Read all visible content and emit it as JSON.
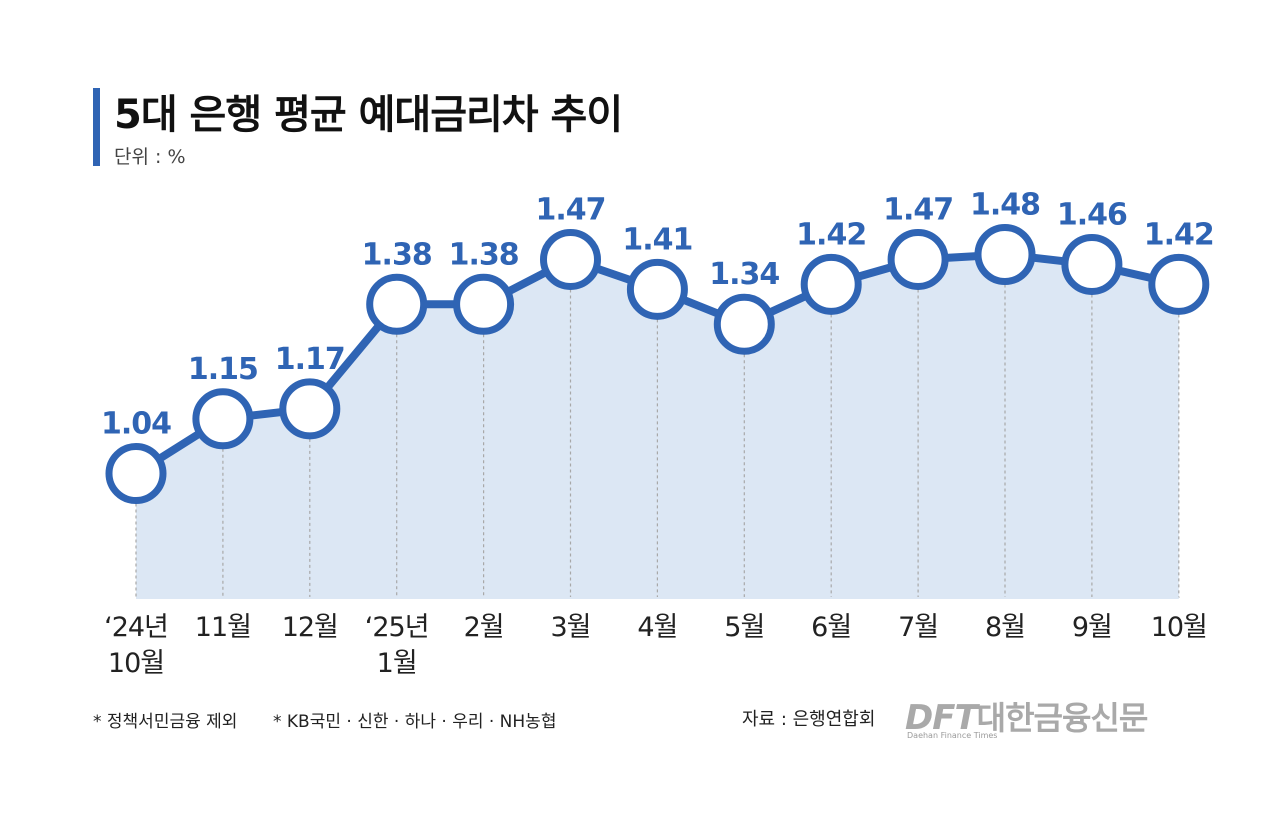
{
  "header": {
    "title": "5대 은행 평균 예대금리차 추이",
    "unit": "단위 : %"
  },
  "chart_data": {
    "type": "line",
    "title": "5대 은행 평균 예대금리차 추이",
    "ylabel": "단위 : %",
    "categories": [
      [
        "‘24년",
        "10월"
      ],
      [
        "11월"
      ],
      [
        "12월"
      ],
      [
        "‘25년",
        "1월"
      ],
      [
        "2월"
      ],
      [
        "3월"
      ],
      [
        "4월"
      ],
      [
        "5월"
      ],
      [
        "6월"
      ],
      [
        "7월"
      ],
      [
        "8월"
      ],
      [
        "9월"
      ],
      [
        "10월"
      ]
    ],
    "values": [
      1.04,
      1.15,
      1.17,
      1.38,
      1.38,
      1.47,
      1.41,
      1.34,
      1.42,
      1.47,
      1.48,
      1.46,
      1.42
    ],
    "labels": [
      "1.04",
      "1.15",
      "1.17",
      "1.38",
      "1.38",
      "1.47",
      "1.41",
      "1.34",
      "1.42",
      "1.47",
      "1.48",
      "1.46",
      "1.42"
    ],
    "ylim": [
      0.79,
      1.71
    ],
    "grid": "vertical-dashed",
    "legend": "none"
  },
  "colors": {
    "line": "#2f64b4",
    "label": "#2f64b4",
    "fill": "#dce7f4",
    "marker_fill": "#ffffff",
    "grid": "#a8a8a8",
    "tick": "#222222"
  },
  "footer": {
    "note1": "* 정책서민금융 제외",
    "note2": "* KB국민 · 신한 · 하나 · 우리 · NH농협",
    "source": "자료 : 은행연합회",
    "logo_brand": "DFT",
    "logo_name": "대한금융신문",
    "logo_sub": "Daehan Finance Times"
  }
}
